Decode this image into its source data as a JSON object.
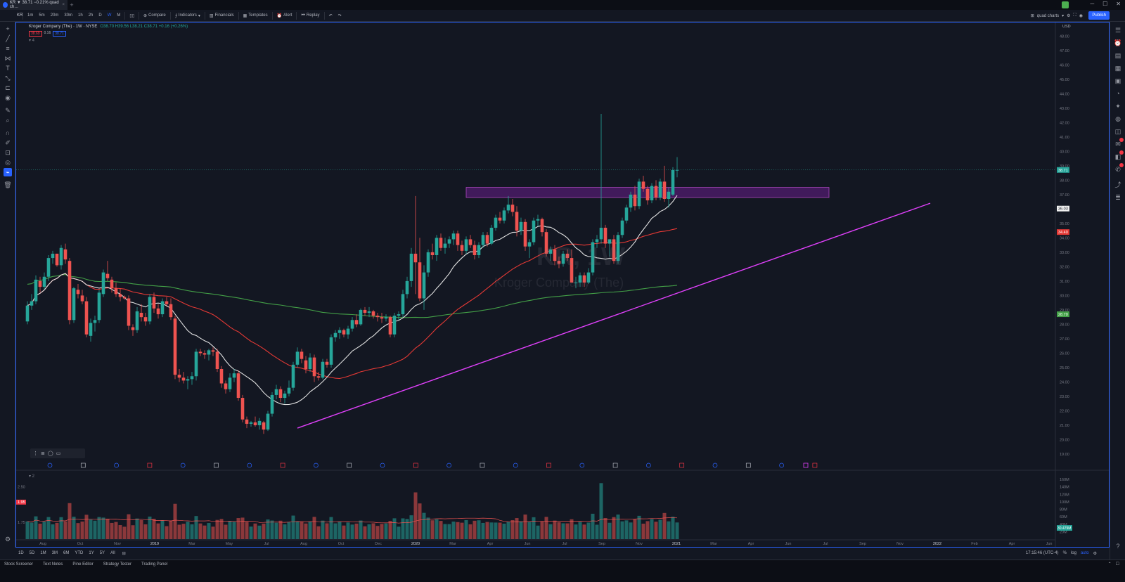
{
  "tab": {
    "label": "KR ▼ 38.71 −0.21% quad ch…",
    "close": "×",
    "new": "+"
  },
  "toolbar": {
    "symbol": "KR",
    "intervals": [
      "1m",
      "5m",
      "20m",
      "30m",
      "1h",
      "2h",
      "D",
      "W",
      "M"
    ],
    "compare": "Compare",
    "indicators": "Indicators",
    "financials": "Financials",
    "templates": "Templates",
    "alert": "Alert",
    "replay": "Replay",
    "layout_name": "quad charts",
    "publish": "Publish"
  },
  "legend": {
    "name": "Kroger Company (The) · 1W · NYSE",
    "ohlc": "O38.70 H39.56 L38.21 C38.71 +0.16 (+0.26%)",
    "bid": "38.69",
    "spread": "0.16",
    "ask": "38.71"
  },
  "watermark": {
    "ticker": "KR, 1W",
    "name": "Kroger Company (The)"
  },
  "price_axis": {
    "currency": "USD",
    "ticks": [
      "48.00",
      "47.00",
      "46.00",
      "45.00",
      "44.00",
      "43.00",
      "42.00",
      "41.00",
      "40.00",
      "39.00",
      "38.00",
      "37.00",
      "36.00",
      "35.00",
      "34.00",
      "33.00",
      "32.00",
      "31.00",
      "30.00",
      "29.00",
      "28.00",
      "27.00",
      "26.00",
      "25.00",
      "24.00",
      "23.00",
      "22.00",
      "21.00",
      "20.00",
      "19.00"
    ],
    "last_price": "38.71",
    "ma20_label": "36.03",
    "ma50_label": "34.40",
    "ma200_label": "28.70"
  },
  "volume_axis": {
    "ticks": [
      "160M",
      "140M",
      "120M",
      "100M",
      "80M",
      "60M",
      "40M",
      "20M"
    ],
    "left_ticks": [
      "2.50",
      "1.75"
    ],
    "left_marker": "1.95",
    "current": "30.479M"
  },
  "time_axis": {
    "labels": [
      "Aug",
      "Oct",
      "Nov",
      "2019",
      "Mar",
      "May",
      "Jul",
      "Aug",
      "Oct",
      "Dec",
      "2020",
      "Mar",
      "Apr",
      "Jun",
      "Jul",
      "Sep",
      "Nov",
      "2021",
      "Mar",
      "Apr",
      "Jun",
      "Jul",
      "Sep",
      "Nov",
      "2022",
      "Feb",
      "Apr",
      "Jun"
    ]
  },
  "bottombar": {
    "ranges": [
      "1D",
      "5D",
      "1M",
      "3M",
      "6M",
      "YTD",
      "1Y",
      "5Y",
      "All"
    ],
    "time": "17:15:46 (UTC-4)",
    "pct": "%",
    "log": "log",
    "auto": "auto"
  },
  "panels": [
    "Stock Screener",
    "Text Notes",
    "Pine Editor",
    "Strategy Tester",
    "Trading Panel"
  ],
  "chart_data": {
    "type": "candlestick",
    "candles_ohlc": [
      [
        28.2,
        29.6,
        28.0,
        29.3
      ],
      [
        29.3,
        30.1,
        29.0,
        29.6
      ],
      [
        29.6,
        31.4,
        29.4,
        31.1
      ],
      [
        31.0,
        31.3,
        30.2,
        30.6
      ],
      [
        30.6,
        31.6,
        30.4,
        31.3
      ],
      [
        31.3,
        32.8,
        31.0,
        32.6
      ],
      [
        32.6,
        33.1,
        32.2,
        32.9
      ],
      [
        32.9,
        32.9,
        32.0,
        32.1
      ],
      [
        32.1,
        33.5,
        31.8,
        33.3
      ],
      [
        33.2,
        33.6,
        32.2,
        32.5
      ],
      [
        32.4,
        32.6,
        28.0,
        28.3
      ],
      [
        28.3,
        30.6,
        28.1,
        30.5
      ],
      [
        30.4,
        30.8,
        29.8,
        30.1
      ],
      [
        30.0,
        30.4,
        29.4,
        29.6
      ],
      [
        29.6,
        29.9,
        27.1,
        27.3
      ],
      [
        27.2,
        28.4,
        26.8,
        28.1
      ],
      [
        28.1,
        28.6,
        27.5,
        28.3
      ],
      [
        28.3,
        30.4,
        28.1,
        30.2
      ],
      [
        30.1,
        31.8,
        29.9,
        31.6
      ],
      [
        31.5,
        32.4,
        31.0,
        31.2
      ],
      [
        31.1,
        31.3,
        30.2,
        30.5
      ],
      [
        30.5,
        30.9,
        29.9,
        30.1
      ],
      [
        30.1,
        30.5,
        29.6,
        29.9
      ],
      [
        29.9,
        30.0,
        29.7,
        29.8
      ],
      [
        29.8,
        30.0,
        27.6,
        27.9
      ],
      [
        27.8,
        28.0,
        27.2,
        27.6
      ],
      [
        27.6,
        29.2,
        27.4,
        28.9
      ],
      [
        28.8,
        29.4,
        28.2,
        28.5
      ],
      [
        28.5,
        28.8,
        27.9,
        28.2
      ],
      [
        28.2,
        30.1,
        28.0,
        29.9
      ],
      [
        29.9,
        30.2,
        28.8,
        29.1
      ],
      [
        29.1,
        29.4,
        28.4,
        28.7
      ],
      [
        28.7,
        29.8,
        28.5,
        29.6
      ],
      [
        29.6,
        29.9,
        29.2,
        29.4
      ],
      [
        29.4,
        29.8,
        28.3,
        28.5
      ],
      [
        28.4,
        28.6,
        24.2,
        24.5
      ],
      [
        24.5,
        24.9,
        24.0,
        24.3
      ],
      [
        24.3,
        24.7,
        23.9,
        24.1
      ],
      [
        24.1,
        24.4,
        23.5,
        24.2
      ],
      [
        24.2,
        24.7,
        23.8,
        24.4
      ],
      [
        24.4,
        26.3,
        24.1,
        26.1
      ],
      [
        26.1,
        26.3,
        25.8,
        26.0
      ],
      [
        26.0,
        26.2,
        25.6,
        25.9
      ],
      [
        25.9,
        26.3,
        25.5,
        26.2
      ],
      [
        26.2,
        26.4,
        25.8,
        26.1
      ],
      [
        26.1,
        26.3,
        24.7,
        24.9
      ],
      [
        24.9,
        25.1,
        23.6,
        23.9
      ],
      [
        23.9,
        24.1,
        23.2,
        23.5
      ],
      [
        23.5,
        24.6,
        23.3,
        24.3
      ],
      [
        24.3,
        24.9,
        24.0,
        24.6
      ],
      [
        24.6,
        24.8,
        22.7,
        22.9
      ],
      [
        22.9,
        23.1,
        21.2,
        21.4
      ],
      [
        21.4,
        21.6,
        20.8,
        21.1
      ],
      [
        21.1,
        21.3,
        20.9,
        21.2
      ],
      [
        21.2,
        21.6,
        20.9,
        21.0
      ],
      [
        21.0,
        21.5,
        20.7,
        21.3
      ],
      [
        21.2,
        21.3,
        20.4,
        20.7
      ],
      [
        20.7,
        22.0,
        20.6,
        21.8
      ],
      [
        21.8,
        23.3,
        21.6,
        23.1
      ],
      [
        23.1,
        23.8,
        22.8,
        23.5
      ],
      [
        23.5,
        23.7,
        22.6,
        22.9
      ],
      [
        22.9,
        23.4,
        22.5,
        23.2
      ],
      [
        23.2,
        24.1,
        23.0,
        23.6
      ],
      [
        23.6,
        25.4,
        23.4,
        25.2
      ],
      [
        25.2,
        26.4,
        25.0,
        26.1
      ],
      [
        26.1,
        26.3,
        25.3,
        25.6
      ],
      [
        25.5,
        25.8,
        24.6,
        24.9
      ],
      [
        24.9,
        26.0,
        24.7,
        25.7
      ],
      [
        25.7,
        25.9,
        24.0,
        24.4
      ],
      [
        24.4,
        24.7,
        24.1,
        24.3
      ],
      [
        24.3,
        25.6,
        24.2,
        25.4
      ],
      [
        25.4,
        25.6,
        25.0,
        25.2
      ],
      [
        25.2,
        27.3,
        25.0,
        27.1
      ],
      [
        27.1,
        27.6,
        26.8,
        27.4
      ],
      [
        27.4,
        27.8,
        27.0,
        27.6
      ],
      [
        27.6,
        27.7,
        27.1,
        27.3
      ],
      [
        27.3,
        27.9,
        27.0,
        27.7
      ],
      [
        27.7,
        28.5,
        27.5,
        28.3
      ],
      [
        28.3,
        28.7,
        27.8,
        28.0
      ],
      [
        28.0,
        29.1,
        27.9,
        29.0
      ],
      [
        29.0,
        29.2,
        28.6,
        28.8
      ],
      [
        28.8,
        29.2,
        28.5,
        28.9
      ],
      [
        28.9,
        29.0,
        28.4,
        28.6
      ],
      [
        28.6,
        28.8,
        28.2,
        28.5
      ],
      [
        28.5,
        28.8,
        28.1,
        28.4
      ],
      [
        28.4,
        28.7,
        28.2,
        28.5
      ],
      [
        28.5,
        28.6,
        27.1,
        27.3
      ],
      [
        27.3,
        28.8,
        27.1,
        28.6
      ],
      [
        28.6,
        28.9,
        28.3,
        28.7
      ],
      [
        28.7,
        30.4,
        28.5,
        30.1
      ],
      [
        30.1,
        31.3,
        29.8,
        31.0
      ],
      [
        31.0,
        33.3,
        30.6,
        32.9
      ],
      [
        32.9,
        36.9,
        30.1,
        32.3
      ],
      [
        32.3,
        34.0,
        29.6,
        29.8
      ],
      [
        29.8,
        32.1,
        29.0,
        31.6
      ],
      [
        31.6,
        33.2,
        31.3,
        33.0
      ],
      [
        33.0,
        33.6,
        32.5,
        32.8
      ],
      [
        32.8,
        34.2,
        32.4,
        34.0
      ],
      [
        34.0,
        34.3,
        33.1,
        33.3
      ],
      [
        33.3,
        34.0,
        32.9,
        33.6
      ],
      [
        33.6,
        34.1,
        33.3,
        33.9
      ],
      [
        33.9,
        34.5,
        33.5,
        34.3
      ],
      [
        34.3,
        34.5,
        33.1,
        33.5
      ],
      [
        33.5,
        33.8,
        32.8,
        33.1
      ],
      [
        33.1,
        34.1,
        32.9,
        33.9
      ],
      [
        33.9,
        34.2,
        33.3,
        33.5
      ],
      [
        33.5,
        33.8,
        32.5,
        32.8
      ],
      [
        32.8,
        33.7,
        32.6,
        33.5
      ],
      [
        33.5,
        34.4,
        33.3,
        34.2
      ],
      [
        34.2,
        34.4,
        33.4,
        33.6
      ],
      [
        33.6,
        34.9,
        33.5,
        34.7
      ],
      [
        34.7,
        35.6,
        34.5,
        35.4
      ],
      [
        35.4,
        35.8,
        35.0,
        35.2
      ],
      [
        35.2,
        36.1,
        35.0,
        35.9
      ],
      [
        35.9,
        36.9,
        35.7,
        36.3
      ],
      [
        36.3,
        36.7,
        35.5,
        35.8
      ],
      [
        35.8,
        36.2,
        34.1,
        34.5
      ],
      [
        34.5,
        35.4,
        34.2,
        35.1
      ],
      [
        35.1,
        35.3,
        33.1,
        33.4
      ],
      [
        33.4,
        33.9,
        32.6,
        33.7
      ],
      [
        33.7,
        35.4,
        33.5,
        35.2
      ],
      [
        35.2,
        35.6,
        34.8,
        35.3
      ],
      [
        35.3,
        35.4,
        34.1,
        34.4
      ],
      [
        34.4,
        34.6,
        32.7,
        32.9
      ],
      [
        32.9,
        33.4,
        32.4,
        33.2
      ],
      [
        33.2,
        33.5,
        32.1,
        32.4
      ],
      [
        32.4,
        32.7,
        31.9,
        32.2
      ],
      [
        32.2,
        33.1,
        32.0,
        32.9
      ],
      [
        32.9,
        33.2,
        32.4,
        32.6
      ],
      [
        32.6,
        33.2,
        31.9,
        30.9
      ],
      [
        30.9,
        31.3,
        30.5,
        30.9
      ],
      [
        30.9,
        31.6,
        30.6,
        31.4
      ],
      [
        31.4,
        31.6,
        30.6,
        30.9
      ],
      [
        30.9,
        31.9,
        30.8,
        31.6
      ],
      [
        31.6,
        33.9,
        31.4,
        33.7
      ],
      [
        33.7,
        34.2,
        33.3,
        33.9
      ],
      [
        33.9,
        42.6,
        33.6,
        34.7
      ],
      [
        34.7,
        34.9,
        33.3,
        33.6
      ],
      [
        33.6,
        33.9,
        32.7,
        33.9
      ],
      [
        33.9,
        34.2,
        32.2,
        32.4
      ],
      [
        32.4,
        34.4,
        32.2,
        34.2
      ],
      [
        34.2,
        35.4,
        34.0,
        35.2
      ],
      [
        35.2,
        36.3,
        35.0,
        36.1
      ],
      [
        36.1,
        37.2,
        35.8,
        37.0
      ],
      [
        37.0,
        37.6,
        35.9,
        36.2
      ],
      [
        36.2,
        38.1,
        36.0,
        37.9
      ],
      [
        37.9,
        38.3,
        37.2,
        37.4
      ],
      [
        37.4,
        37.6,
        36.3,
        36.6
      ],
      [
        36.6,
        37.8,
        36.4,
        37.6
      ],
      [
        37.6,
        38.0,
        36.6,
        36.8
      ],
      [
        36.8,
        38.1,
        36.6,
        37.9
      ],
      [
        37.9,
        39.0,
        36.5,
        36.7
      ],
      [
        36.7,
        37.5,
        36.1,
        37.2
      ],
      [
        37.0,
        38.9,
        36.9,
        38.7
      ],
      [
        38.7,
        39.6,
        38.2,
        38.71
      ]
    ],
    "resistance_zone": [
      36.8,
      37.5
    ],
    "trendline": [
      [
        20.8
      ],
      [
        36.4
      ]
    ],
    "series": [
      {
        "name": "SMA 20"
      },
      {
        "name": "SMA 50"
      },
      {
        "name": "SMA 200"
      }
    ]
  },
  "colors": {
    "up": "#26a69a",
    "down": "#ef5350",
    "ma20": "#e0e0e0",
    "ma50": "#e53935",
    "ma200": "#43a047",
    "trend": "#e040fb",
    "zone": "#7b1fa2",
    "bg": "#131722",
    "accent": "#2962ff"
  }
}
